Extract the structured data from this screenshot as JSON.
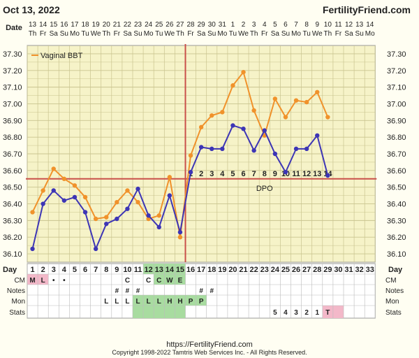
{
  "header": {
    "date": "Oct 13, 2022",
    "site": "FertilityFriend.com"
  },
  "footer": {
    "url": "https://FertilityFriend.com",
    "copyright": "Copyright 1998-2022 Tamtris Web Services Inc. - All Rights Reserved."
  },
  "row_labels": {
    "date": "Date",
    "day": "Day",
    "cm": "CM",
    "notes": "Notes",
    "mon": "Mon",
    "stats": "Stats"
  },
  "colors": {
    "bbt": "#f0922b",
    "line2": "#3d35b5",
    "coverline": "#c9504a",
    "grid": "#c9c48f",
    "plot_bg": "#f6f3c8",
    "green": "#a8dca0",
    "pink": "#f3b8c9"
  },
  "chart_data": {
    "type": "line",
    "legend": [
      "Vaginal BBT"
    ],
    "legend_placement": "top-left",
    "ylim": [
      36.05,
      37.35
    ],
    "yticks": [
      "37.30",
      "37.20",
      "37.10",
      "37.00",
      "36.90",
      "36.80",
      "36.70",
      "36.60",
      "36.50",
      "36.40",
      "36.30",
      "36.20",
      "36.10"
    ],
    "dates": [
      "13",
      "14",
      "15",
      "16",
      "17",
      "18",
      "19",
      "20",
      "21",
      "22",
      "23",
      "24",
      "25",
      "26",
      "27",
      "28",
      "29",
      "30",
      "31",
      "1",
      "2",
      "3",
      "4",
      "5",
      "6",
      "7",
      "8",
      "9",
      "10",
      "11",
      "12",
      "13",
      "14"
    ],
    "weekdays": [
      "Th",
      "Fr",
      "Sa",
      "Su",
      "Mo",
      "Tu",
      "We",
      "Th",
      "Fr",
      "Sa",
      "Su",
      "Mo",
      "Tu",
      "We",
      "Th",
      "Fr",
      "Sa",
      "Su",
      "Mo",
      "Tu",
      "We",
      "Th",
      "Fr",
      "Sa",
      "Su",
      "Mo",
      "Tu",
      "We",
      "Th",
      "Fr",
      "Sa",
      "Su",
      "Mo"
    ],
    "days": [
      "1",
      "2",
      "3",
      "4",
      "5",
      "6",
      "7",
      "8",
      "9",
      "10",
      "11",
      "12",
      "13",
      "14",
      "15",
      "16",
      "17",
      "18",
      "19",
      "20",
      "21",
      "22",
      "23",
      "24",
      "25",
      "26",
      "27",
      "28",
      "29",
      "30",
      "31",
      "32",
      "33"
    ],
    "series": [
      {
        "name": "Vaginal BBT",
        "color": "#f0922b",
        "values": [
          36.35,
          36.48,
          36.61,
          36.55,
          36.51,
          36.44,
          36.31,
          36.32,
          36.41,
          36.48,
          36.41,
          36.31,
          36.33,
          36.56,
          36.2,
          36.69,
          36.86,
          36.93,
          36.95,
          37.11,
          37.19,
          36.96,
          36.81,
          37.03,
          36.92,
          37.02,
          37.01,
          37.07,
          36.92,
          null,
          null,
          null,
          null
        ]
      },
      {
        "name": "",
        "color": "#3d35b5",
        "values": [
          36.13,
          36.4,
          36.48,
          36.42,
          36.44,
          36.35,
          36.13,
          36.28,
          36.31,
          36.37,
          36.49,
          36.33,
          36.26,
          36.45,
          36.23,
          36.59,
          36.74,
          36.73,
          36.73,
          36.87,
          36.85,
          36.72,
          36.84,
          36.7,
          36.59,
          36.73,
          36.73,
          36.81,
          36.57,
          null,
          null,
          null,
          null
        ]
      }
    ],
    "coverline": 36.55,
    "coverline_label": "DPO",
    "ovulation_day": "15",
    "dpo_labels": [
      "1",
      "2",
      "3",
      "4",
      "5",
      "6",
      "7",
      "8",
      "9",
      "10",
      "11",
      "12",
      "13",
      "14"
    ],
    "cm": [
      "M",
      "L",
      "•",
      "•",
      "",
      "",
      "",
      "",
      "",
      "",
      "",
      "",
      "",
      "",
      "",
      "",
      "",
      "",
      "",
      "",
      "",
      "",
      "",
      "",
      "",
      "",
      "",
      "",
      "",
      "",
      "",
      "",
      ""
    ],
    "notes_row1": [
      "",
      "",
      "",
      "",
      "",
      "",
      "",
      "",
      "",
      "C",
      "",
      "C",
      "C",
      "W",
      "E",
      "",
      "",
      "",
      "",
      "",
      "",
      "",
      "",
      "",
      "",
      "",
      "",
      "",
      "",
      "",
      "",
      "",
      ""
    ],
    "notes_row2": [
      "",
      "",
      "",
      "",
      "",
      "",
      "",
      "",
      "#",
      "#",
      "#",
      "",
      "",
      "",
      "",
      "",
      "#",
      "#",
      "",
      "",
      "",
      "",
      "",
      "",
      "",
      "",
      "",
      "",
      "",
      "",
      "",
      "",
      ""
    ],
    "mon": [
      "",
      "",
      "",
      "",
      "",
      "",
      "",
      "L",
      "L",
      "L",
      "L",
      "L",
      "L",
      "H",
      "H",
      "P",
      "P",
      "",
      "",
      "",
      "",
      "",
      "",
      "",
      "",
      "",
      "",
      "",
      "",
      "",
      "",
      "",
      ""
    ],
    "stats": [
      "",
      "",
      "",
      "",
      "",
      "",
      "",
      "",
      "",
      "",
      "",
      "",
      "",
      "",
      "",
      "",
      "",
      "",
      "",
      "",
      "",
      "",
      "",
      "5",
      "4",
      "3",
      "2",
      "1",
      "T",
      "",
      "",
      "",
      ""
    ],
    "grid": true
  }
}
